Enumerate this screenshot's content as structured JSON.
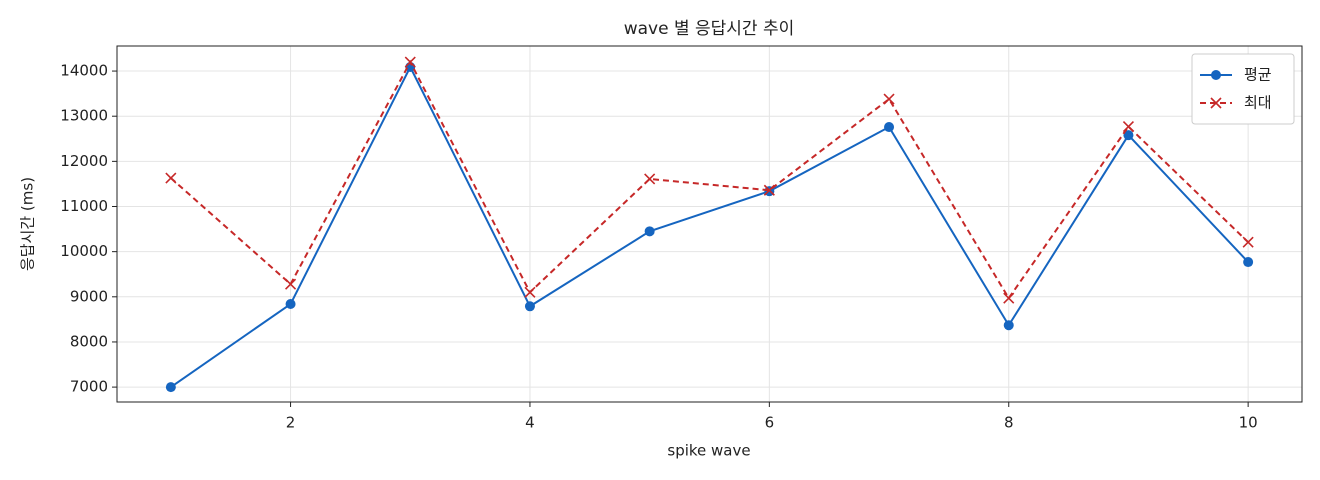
{
  "chart_data": {
    "type": "line",
    "title": "wave 별 응답시간 추이",
    "x_label": "spike wave",
    "y_label": "응답시간 (ms)",
    "x": [
      1,
      2,
      3,
      4,
      5,
      6,
      7,
      8,
      9,
      10
    ],
    "series": [
      {
        "name": "평균",
        "color": "#1565c0",
        "marker": "o",
        "linestyle": "solid",
        "values": [
          7000,
          8840,
          14090,
          8790,
          10450,
          11340,
          12760,
          8370,
          12580,
          9770
        ]
      },
      {
        "name": "최대",
        "color": "#c62828",
        "marker": "x",
        "linestyle": "dashed",
        "values": [
          11630,
          9280,
          14200,
          9100,
          11610,
          11360,
          13380,
          8970,
          12770,
          10210
        ]
      }
    ],
    "xlim": [
      0.55,
      10.45
    ],
    "ylim": [
      6670,
      14555
    ],
    "xticks": [
      2,
      4,
      6,
      8,
      10
    ],
    "yticks": [
      7000,
      8000,
      9000,
      10000,
      11000,
      12000,
      13000,
      14000
    ],
    "grid": true,
    "legend": "upper right"
  }
}
